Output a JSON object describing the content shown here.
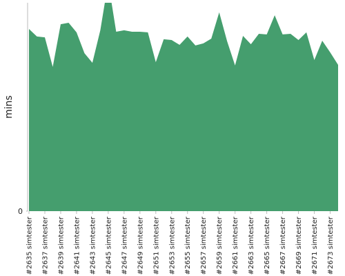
{
  "chart_data": {
    "type": "area",
    "ylabel": "mins",
    "categories": [
      "#2635 simtester",
      null,
      "#2637 simtester",
      null,
      "#2639 simtester",
      null,
      "#2641 simtester",
      null,
      "#2643 simtester",
      null,
      "#2645 simtester",
      null,
      "#2647 simtester",
      null,
      "#2649 simtester",
      null,
      "#2651 simtester",
      null,
      "#2653 simtester",
      null,
      "#2655 simtester",
      null,
      "#2657 simtester",
      null,
      "#2659 simtester",
      null,
      "#2661 simtester",
      null,
      "#2663 simtester",
      null,
      "#2665 simtester",
      null,
      "#2667 simtester",
      null,
      "#2669 simtester",
      null,
      "#2671 simtester",
      null,
      "#2673 simtester",
      null
    ],
    "values": [
      87.4,
      83.8,
      83.4,
      69.2,
      89.7,
      90.4,
      85.8,
      75.8,
      71.2,
      86.8,
      110,
      86.1,
      86.8,
      86.1,
      86.1,
      85.8,
      71.5,
      82.5,
      82.1,
      79.8,
      83.8,
      79.5,
      80.5,
      82.8,
      95.4,
      81.5,
      69.9,
      84.1,
      80.1,
      85.1,
      84.8,
      94.0,
      84.8,
      85.1,
      82.1,
      85.8,
      72.5,
      81.8,
      76.2,
      70.2
    ],
    "color": "#459e6e",
    "ylim": [
      0,
      100
    ],
    "yticks": [
      0
    ]
  }
}
